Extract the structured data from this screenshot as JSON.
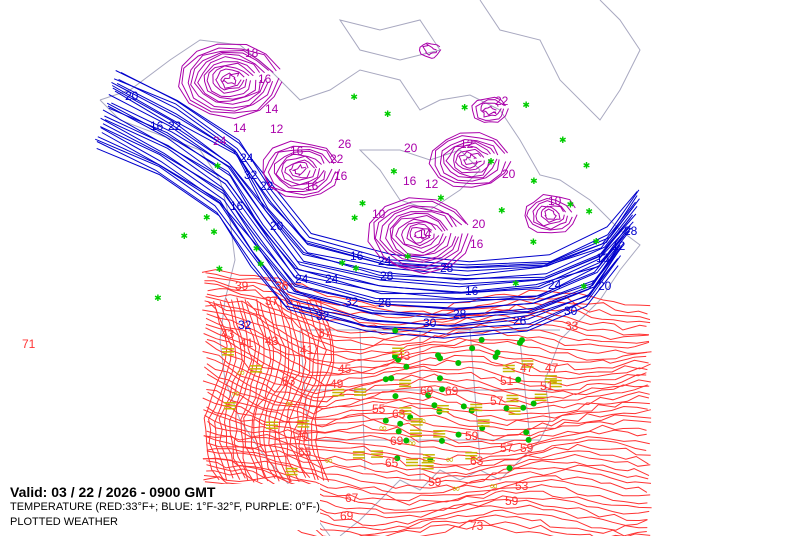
{
  "legend": {
    "valid": "Valid: 03 / 22 / 2026  -  0900 GMT",
    "temperature": "TEMPERATURE (RED:33°F+; BLUE: 1°F-32°F, PURPLE: 0°F-)",
    "plotted": "PLOTTED WEATHER"
  },
  "colors": {
    "red": "#ff3333",
    "blue": "#0000cc",
    "purple": "#aa00aa",
    "border": "#a8a8c0",
    "rain": "#00bb00",
    "fog": "#c8b400",
    "snow": "#00cc00"
  },
  "labels": {
    "red": [
      "37",
      "41",
      "43",
      "45",
      "43",
      "47",
      "49",
      "51",
      "55",
      "69",
      "69",
      "63",
      "69",
      "65",
      "59",
      "57",
      "57",
      "59",
      "63",
      "59",
      "53",
      "59",
      "73",
      "69",
      "67",
      "70",
      "65",
      "63",
      "51",
      "47",
      "33",
      "39",
      "36",
      "37",
      "41",
      "43",
      "71"
    ],
    "blue": [
      "32",
      "32",
      "32",
      "26",
      "30",
      "28",
      "26",
      "30",
      "20",
      "28",
      "24",
      "24",
      "16",
      "24",
      "28",
      "24",
      "20",
      "22",
      "16",
      "32",
      "16",
      "20",
      "22",
      "28",
      "16",
      "24",
      "12",
      "13"
    ],
    "purple": [
      "18",
      "14",
      "16",
      "16",
      "26",
      "22",
      "16",
      "10",
      "14",
      "20",
      "16",
      "12",
      "16",
      "20",
      "22",
      "10",
      "12",
      "20",
      "24",
      "14",
      "12",
      "16"
    ]
  },
  "weather_symbols": [
    "rain-dot",
    "fog-bars",
    "snow-asterisk",
    "haze-infinity"
  ]
}
